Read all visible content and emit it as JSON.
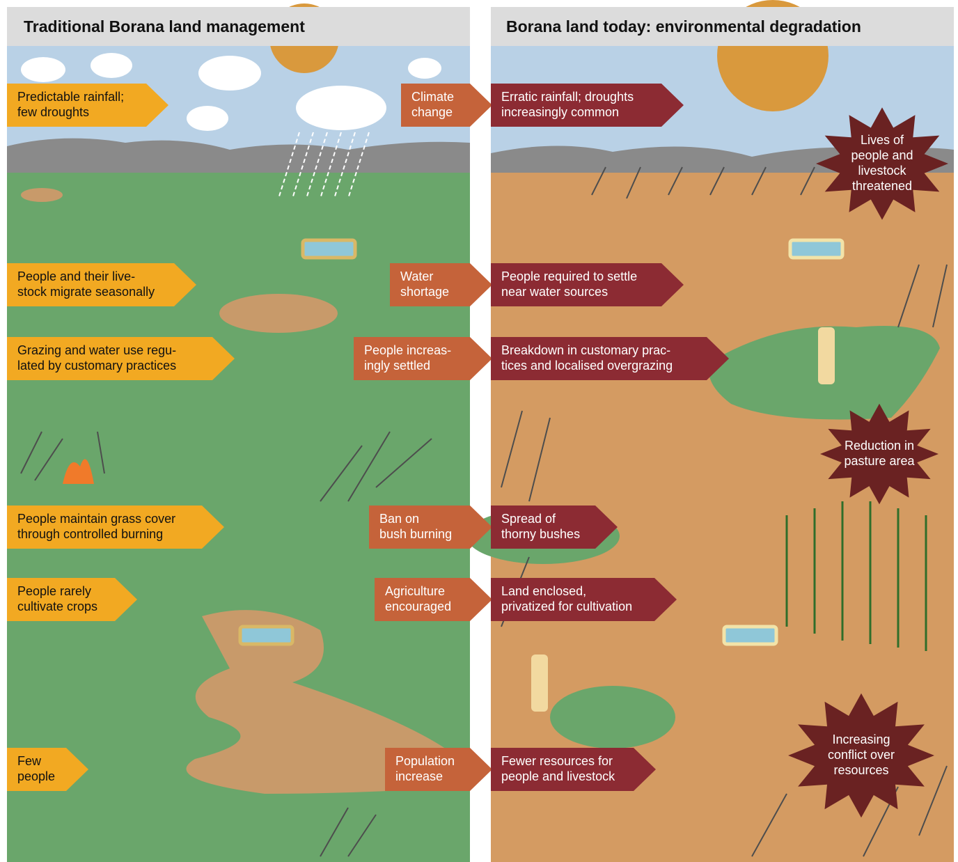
{
  "left": {
    "title": "Traditional Borana land management",
    "arrows": [
      {
        "lines": [
          "Predictable rainfall;",
          "few droughts"
        ]
      },
      {
        "lines": [
          "People and their live-",
          "stock migrate seasonally"
        ]
      },
      {
        "lines": [
          "Grazing and water use regu-",
          "lated by customary practices"
        ]
      },
      {
        "lines": [
          "People maintain grass cover",
          "through controlled burning"
        ]
      },
      {
        "lines": [
          "People rarely",
          "cultivate crops"
        ]
      },
      {
        "lines": [
          "Few",
          "people"
        ]
      }
    ]
  },
  "drivers": [
    {
      "lines": [
        "Climate",
        "change"
      ]
    },
    {
      "lines": [
        "Water",
        "shortage"
      ]
    },
    {
      "lines": [
        "People increas-",
        "ingly settled"
      ]
    },
    {
      "lines": [
        "Ban on",
        "bush burning"
      ]
    },
    {
      "lines": [
        "Agriculture",
        "encouraged"
      ]
    },
    {
      "lines": [
        "Population",
        "increase"
      ]
    }
  ],
  "right": {
    "title": "Borana land today: environmental degradation",
    "arrows": [
      {
        "lines": [
          "Erratic rainfall; droughts",
          "increasingly common"
        ]
      },
      {
        "lines": [
          "People required to settle",
          "near water sources"
        ]
      },
      {
        "lines": [
          "Breakdown in customary prac-",
          "tices and localised overgrazing"
        ]
      },
      {
        "lines": [
          "Spread of",
          "thorny bushes"
        ]
      },
      {
        "lines": [
          "Land enclosed,",
          "privatized for cultivation"
        ]
      },
      {
        "lines": [
          "Fewer resources for",
          "people and livestock"
        ]
      }
    ],
    "stars": [
      {
        "lines": [
          "Lives of",
          "people and",
          "livestock",
          "threatened"
        ]
      },
      {
        "lines": [
          "Reduction in",
          "pasture area"
        ]
      },
      {
        "lines": [
          "Increasing",
          "conflict over",
          "resources"
        ]
      }
    ]
  }
}
